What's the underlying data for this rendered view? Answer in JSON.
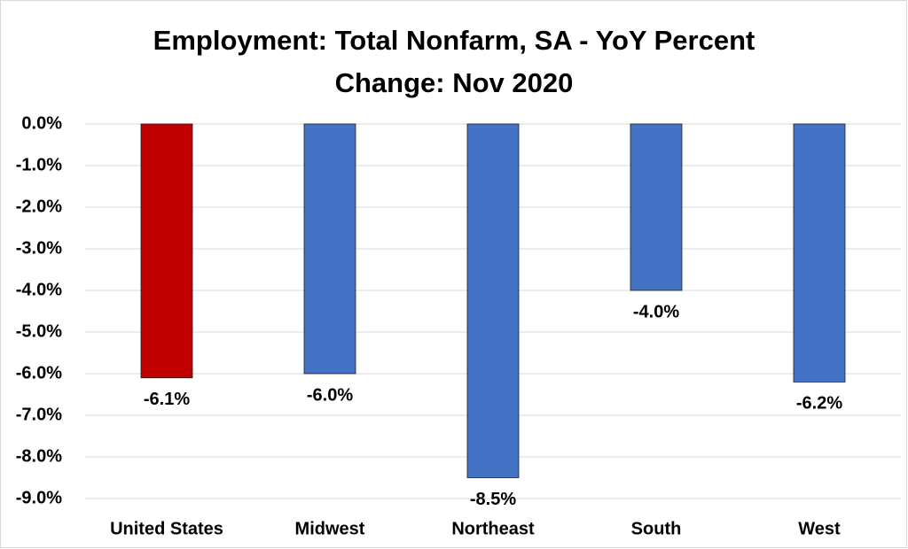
{
  "chart_data": {
    "type": "bar",
    "title": "Employment: Total Nonfarm, SA - YoY Percent Change: Nov 2020",
    "categories": [
      "United States",
      "Midwest",
      "Northeast",
      "South",
      "West"
    ],
    "values": [
      -6.1,
      -6.0,
      -8.5,
      -4.0,
      -6.2
    ],
    "value_labels": [
      "-6.1%",
      "-6.0%",
      "-8.5%",
      "-4.0%",
      "-6.2%"
    ],
    "colors": [
      "#c00000",
      "#4472c4",
      "#4472c4",
      "#4472c4",
      "#4472c4"
    ],
    "ylim": [
      -9,
      0
    ],
    "yticks": [
      {
        "value": 0,
        "label": "0.0%"
      },
      {
        "value": -1,
        "label": "-1.0%"
      },
      {
        "value": -2,
        "label": "-2.0%"
      },
      {
        "value": -3,
        "label": "-3.0%"
      },
      {
        "value": -4,
        "label": "-4.0%"
      },
      {
        "value": -5,
        "label": "-5.0%"
      },
      {
        "value": -6,
        "label": "-6.0%"
      },
      {
        "value": -7,
        "label": "-7.0%"
      },
      {
        "value": -8,
        "label": "-8.0%"
      },
      {
        "value": -9,
        "label": "-9.0%"
      }
    ],
    "grid": true
  }
}
